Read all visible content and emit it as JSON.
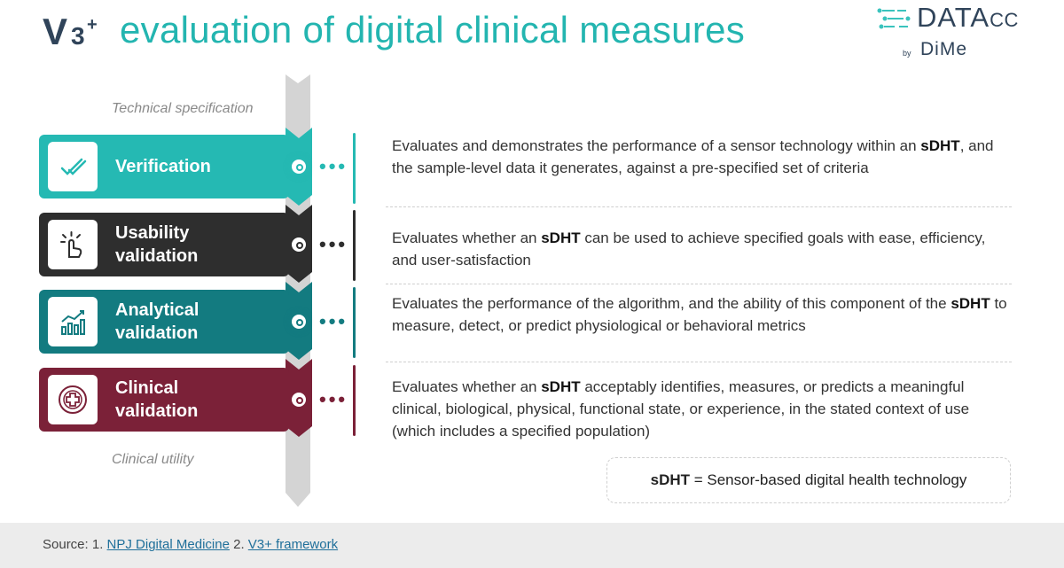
{
  "header": {
    "logo_v": "V",
    "logo_3": "3",
    "logo_plus": "+",
    "title": "evaluation of digital clinical measures",
    "brand_main": "DATA",
    "brand_cc": "CC",
    "brand_by": "by",
    "brand_dime": "DiMe"
  },
  "spine": {
    "top_label": "Technical specification",
    "bottom_label": "Clinical utility"
  },
  "steps": [
    {
      "label": "Verification",
      "icon": "checkmark-icon",
      "color": "#25b9b3",
      "desc_pre": "Evaluates and demonstrates the performance of a sensor technology within an ",
      "desc_bold": "sDHT",
      "desc_post": ", and the sample-level data it generates, against a pre-specified set of criteria"
    },
    {
      "label_line1": "Usability",
      "label_line2": "validation",
      "icon": "tap-hand-icon",
      "color": "#2e2e2e",
      "desc_pre": "Evaluates whether an ",
      "desc_bold": "sDHT",
      "desc_post": " can be used to achieve specified goals with ease, efficiency, and user-satisfaction"
    },
    {
      "label_line1": "Analytical",
      "label_line2": "validation",
      "icon": "bar-chart-icon",
      "color": "#137b80",
      "desc_pre": "Evaluates the performance of the algorithm, and the ability of this component of the ",
      "desc_bold": "sDHT",
      "desc_post": " to measure, detect, or predict physiological or behavioral metrics"
    },
    {
      "label_line1": "Clinical",
      "label_line2": "validation",
      "icon": "medical-cross-icon",
      "color": "#7b2138",
      "desc_pre": "Evaluates whether an ",
      "desc_bold": "sDHT",
      "desc_post": " acceptably identifies, measures, or predicts a meaningful clinical, biological, physical, functional state, or experience, in the stated context of use (which includes a specified population)"
    }
  ],
  "legend": {
    "bold": "sDHT",
    "text": " = Sensor-based digital health technology"
  },
  "footer": {
    "source_prefix": "Source: 1. ",
    "link1": "NPJ Digital Medicine",
    "mid": " 2. ",
    "link2": "V3+ framework"
  }
}
